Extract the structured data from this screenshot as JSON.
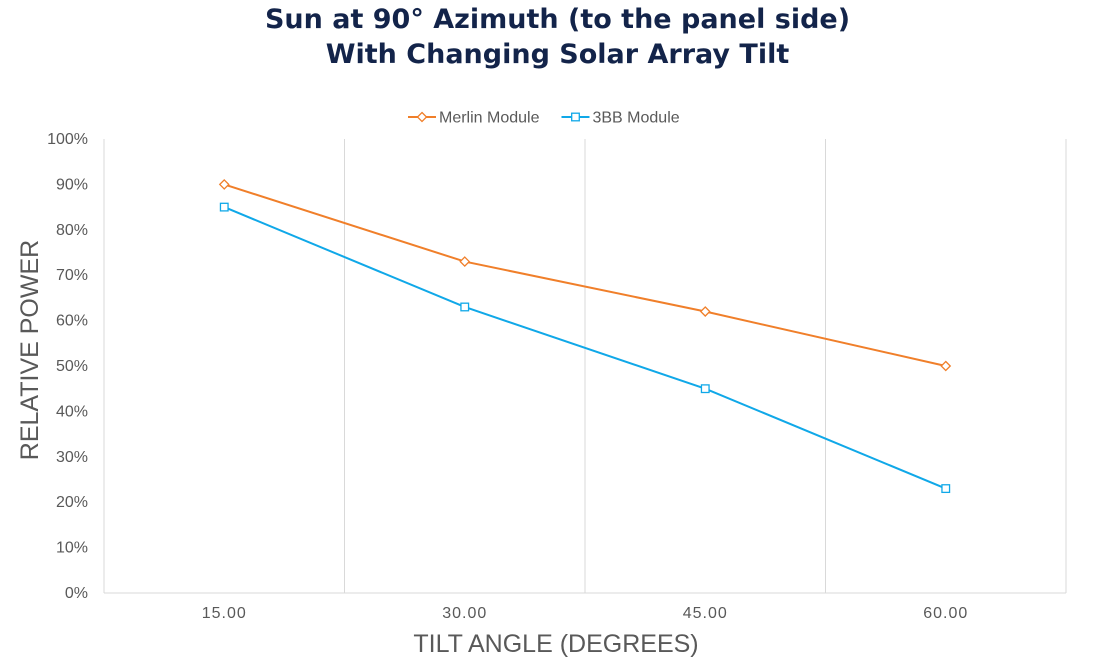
{
  "chart_data": {
    "type": "line",
    "title": [
      "Sun at 90° Azimuth (to the panel side)",
      "With Changing Solar Array Tilt"
    ],
    "xlabel": "TILT ANGLE (DEGREES)",
    "ylabel": "RELATIVE POWER",
    "categories": [
      "15.00",
      "30.00",
      "45.00",
      "60.00"
    ],
    "y_ticks": [
      "0%",
      "10%",
      "20%",
      "30%",
      "40%",
      "50%",
      "60%",
      "70%",
      "80%",
      "90%",
      "100%"
    ],
    "ylim": [
      0,
      100
    ],
    "grid": "vertical",
    "legend_position": "top",
    "series": [
      {
        "name": "Merlin Module",
        "color": "#f07f2a",
        "marker": "diamond",
        "values": [
          90,
          73,
          62,
          50
        ]
      },
      {
        "name": "3BB Module",
        "color": "#10a8e8",
        "marker": "square",
        "values": [
          85,
          63,
          45,
          23
        ]
      }
    ]
  }
}
